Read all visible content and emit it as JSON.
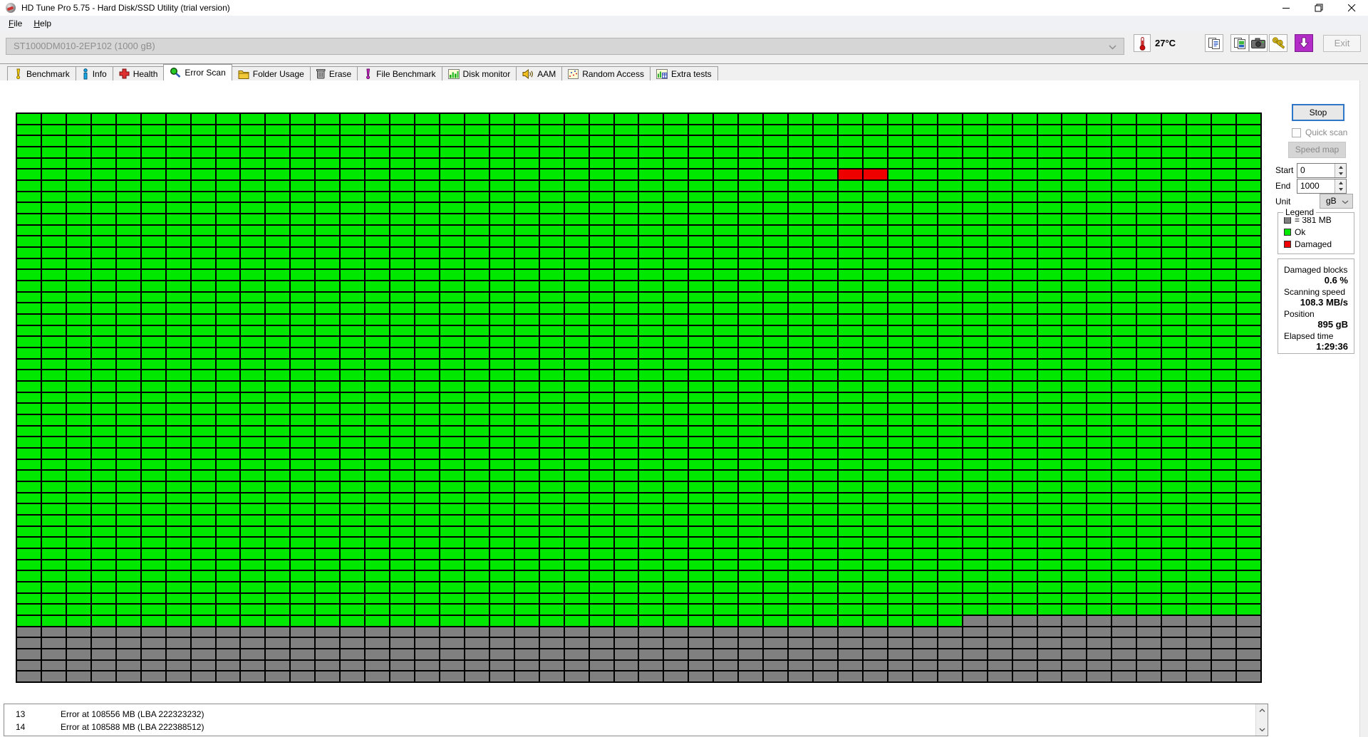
{
  "window": {
    "title": "HD Tune Pro 5.75 - Hard Disk/SSD Utility (trial version)",
    "controls": [
      "minimize",
      "restore",
      "close"
    ]
  },
  "menu": {
    "items": [
      "File",
      "Help"
    ]
  },
  "toolbar": {
    "drive_selector": {
      "value": "ST1000DM010-2EP102 (1000 gB)"
    },
    "temperature": "27°C",
    "buttons": [
      {
        "icon": "copy-report-icon"
      },
      {
        "icon": "copy-image-icon"
      },
      {
        "icon": "camera-icon"
      },
      {
        "icon": "keys-icon"
      },
      {
        "icon": "download-icon"
      }
    ],
    "exit_label": "Exit"
  },
  "tabs": {
    "active": "Error Scan",
    "items": [
      {
        "label": "Benchmark",
        "icon": "benchmark-icon"
      },
      {
        "label": "Info",
        "icon": "info-icon"
      },
      {
        "label": "Health",
        "icon": "health-icon"
      },
      {
        "label": "Error Scan",
        "icon": "error-scan-icon"
      },
      {
        "label": "Folder Usage",
        "icon": "folder-icon"
      },
      {
        "label": "Erase",
        "icon": "trash-icon"
      },
      {
        "label": "File Benchmark",
        "icon": "file-benchmark-icon"
      },
      {
        "label": "Disk monitor",
        "icon": "disk-monitor-icon"
      },
      {
        "label": "AAM",
        "icon": "speaker-icon"
      },
      {
        "label": "Random Access",
        "icon": "random-access-icon"
      },
      {
        "label": "Extra tests",
        "icon": "extra-tests-icon"
      }
    ]
  },
  "scan_controls": {
    "stop_label": "Stop",
    "quick_scan_label": "Quick scan",
    "speed_map_label": "Speed map",
    "start_label": "Start",
    "start_value": "0",
    "end_label": "End",
    "end_value": "1000",
    "unit_label": "Unit",
    "unit_value": "gB"
  },
  "legend": {
    "title": "Legend",
    "items": [
      {
        "swatch": "#808080",
        "label": "= 381 MB"
      },
      {
        "swatch": "#00e800",
        "label": "Ok"
      },
      {
        "swatch": "#ee0000",
        "label": "Damaged"
      }
    ]
  },
  "statistics": {
    "rows": [
      {
        "label": "Damaged blocks",
        "value": "0.6 %"
      },
      {
        "label": "Scanning speed",
        "value": "108.3 MB/s"
      },
      {
        "label": "Position",
        "value": "895 gB"
      },
      {
        "label": "Elapsed time",
        "value": "1:29:36"
      }
    ]
  },
  "error_log": {
    "rows": [
      {
        "index": "13",
        "message": "Error at 108556 MB (LBA 222323232)"
      },
      {
        "index": "14",
        "message": "Error at 108588 MB (LBA 222388512)"
      }
    ]
  },
  "chart_data": {
    "type": "heatmap",
    "title": "Error Scan disk surface map",
    "block_size": "381 MB",
    "grid": {
      "cols": 50,
      "rows": 51
    },
    "states": {
      "ok": "#00e800",
      "damaged": "#ee0000",
      "unscanned": "#808080"
    },
    "scan": {
      "full_ok_rows": 45,
      "partial_row_index": 45,
      "partial_row_ok_cols": 38
    },
    "damaged_cells": [
      {
        "row": 5,
        "col": 33
      },
      {
        "row": 5,
        "col": 34
      }
    ],
    "legend_position": "right",
    "grid_lines": "black"
  },
  "colors": {
    "ok_green": "#00e800",
    "damaged_red": "#ee0000",
    "unscanned_gray": "#808080",
    "focus_blue": "#2f76c8",
    "download_purple": "#b42cc8",
    "thermometer_red": "#cc1111"
  }
}
